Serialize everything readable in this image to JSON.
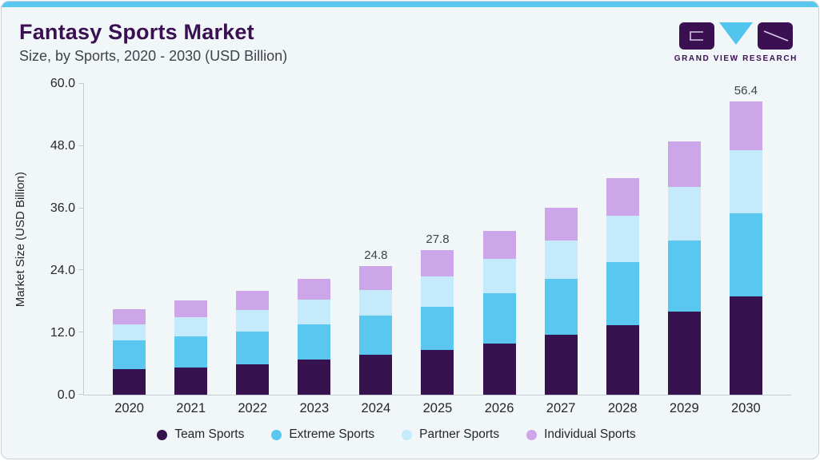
{
  "header": {
    "title": "Fantasy Sports Market",
    "subtitle": "Size, by Sports, 2020 - 2030 (USD Billion)",
    "brand": "GRAND VIEW RESEARCH"
  },
  "chart_data": {
    "type": "bar",
    "stacked": true,
    "title": "Fantasy Sports Market Size, by Sports, 2020 - 2030 (USD Billion)",
    "categories": [
      "2020",
      "2021",
      "2022",
      "2023",
      "2024",
      "2025",
      "2026",
      "2027",
      "2028",
      "2029",
      "2030"
    ],
    "series": [
      {
        "name": "Team Sports",
        "color": "#36124e",
        "values": [
          4.9,
          5.2,
          5.9,
          6.8,
          7.7,
          8.6,
          9.8,
          11.5,
          13.4,
          16.0,
          19.0
        ]
      },
      {
        "name": "Extreme Sports",
        "color": "#59c7f0",
        "values": [
          5.5,
          6.0,
          6.3,
          6.8,
          7.5,
          8.4,
          9.7,
          10.8,
          12.1,
          13.7,
          16.0
        ]
      },
      {
        "name": "Partner Sports",
        "color": "#c4eafb",
        "values": [
          3.2,
          3.7,
          4.1,
          4.7,
          5.0,
          5.8,
          6.6,
          7.4,
          8.9,
          10.3,
          12.1
        ]
      },
      {
        "name": "Individual Sports",
        "color": "#cda6e9",
        "values": [
          2.8,
          3.3,
          3.7,
          4.0,
          4.6,
          5.0,
          5.4,
          6.3,
          7.3,
          8.7,
          9.3
        ]
      }
    ],
    "bar_value_labels": [
      null,
      null,
      null,
      null,
      "24.8",
      "27.8",
      null,
      null,
      null,
      null,
      "56.4"
    ],
    "ylabel": "Market Size (USD Billion)",
    "xlabel": "",
    "ylim": [
      0,
      60
    ],
    "yticks": [
      "60.0",
      "48.0",
      "36.0",
      "24.0",
      "12.0",
      "0.0"
    ],
    "grid": false,
    "legend_position": "bottom"
  },
  "colors": {
    "accent_strip": "#5ac7ef",
    "card_background": "#f1f6f9",
    "title": "#3a1053",
    "axis_line": "#c6cbd4",
    "axis_text": "#26272b"
  }
}
